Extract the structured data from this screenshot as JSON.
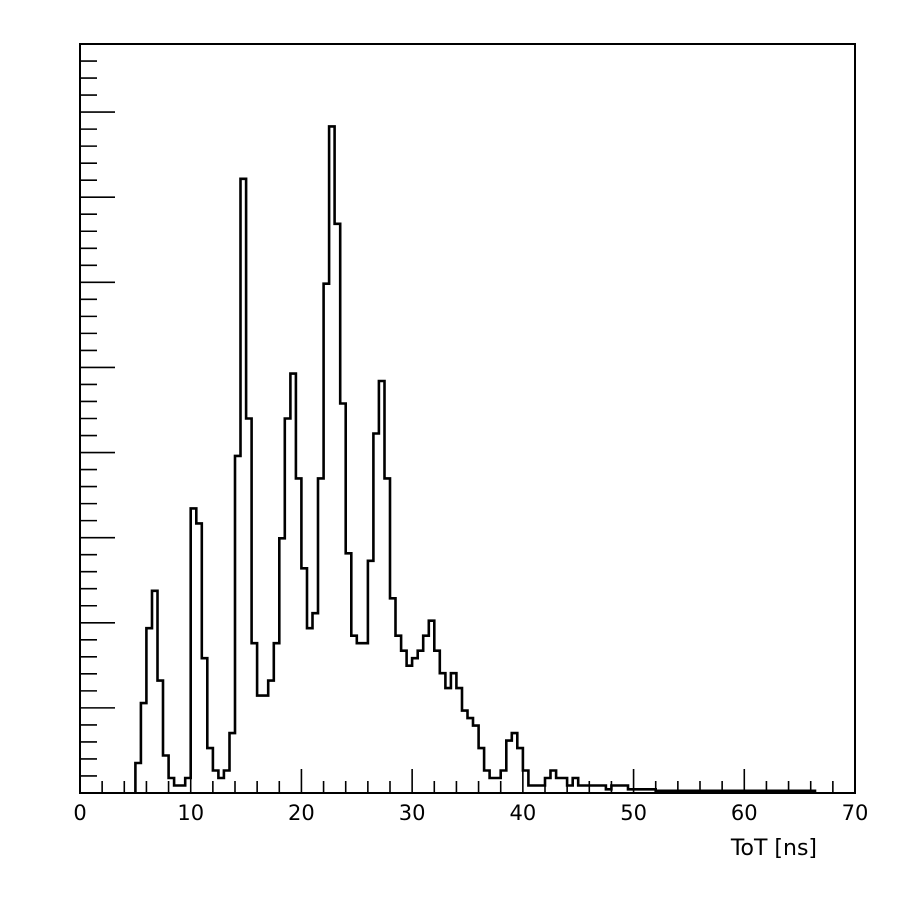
{
  "chart_data": {
    "type": "histogram",
    "title": "",
    "xlabel": "ToT [ns]",
    "ylabel": "",
    "xlim": [
      0,
      70
    ],
    "ylim": [
      0,
      100
    ],
    "grid": false,
    "x_ticks": [
      0,
      10,
      20,
      30,
      40,
      50,
      60,
      70
    ],
    "x_tick_labels": [
      "0",
      "10",
      "20",
      "30",
      "40",
      "50",
      "60",
      "70"
    ],
    "y_tick_labels_shown": false,
    "bin_width": 0.5,
    "series": [
      {
        "x": [
          5.25,
          5.75,
          6.25,
          6.75,
          7.25,
          7.75,
          8.25,
          8.75,
          9.25,
          9.75,
          10.25,
          10.75,
          11.25,
          11.75,
          12.25,
          12.75,
          13.25,
          13.75,
          14.25,
          14.75,
          15.25,
          15.75,
          16.25,
          16.75,
          17.25,
          17.75,
          18.25,
          18.75,
          19.25,
          19.75,
          20.25,
          20.75,
          21.25,
          21.75,
          22.25,
          22.75,
          23.25,
          23.75,
          24.25,
          24.75,
          25.25,
          25.75,
          26.25,
          26.75,
          27.25,
          27.75,
          28.25,
          28.75,
          29.25,
          29.75,
          30.25,
          30.75,
          31.25,
          31.75,
          32.25,
          32.75,
          33.25,
          33.75,
          34.25,
          34.75,
          35.25,
          35.75,
          36.25,
          36.75,
          37.25,
          37.75,
          38.25,
          38.75,
          39.25,
          39.75,
          40.25,
          40.75,
          41.25,
          41.75,
          42.25,
          42.75,
          43.25,
          43.75,
          44.25,
          44.75,
          45.25,
          45.75,
          46.25,
          46.75,
          47.25,
          47.75,
          48.25,
          48.75,
          49.25,
          49.75,
          50.25,
          50.75,
          51.25,
          51.75,
          52.25,
          52.75,
          53.25,
          53.75,
          54.25,
          54.75,
          55.25,
          55.75,
          56.25,
          56.75,
          57.25,
          57.75,
          58.25,
          58.75,
          59.25,
          59.75,
          60.25,
          60.75,
          61.25,
          61.75,
          62.25,
          62.75,
          63.25,
          63.75,
          64.25,
          64.75,
          65.25,
          65.75,
          66.25,
          66.75
        ],
        "y": [
          4,
          12,
          22,
          27,
          15,
          5,
          2,
          1,
          1,
          2,
          38,
          36,
          18,
          6,
          3,
          2,
          3,
          8,
          45,
          82,
          50,
          20,
          13,
          13,
          15,
          20,
          34,
          50,
          56,
          42,
          30,
          22,
          24,
          42,
          68,
          89,
          76,
          52,
          32,
          21,
          20,
          20,
          31,
          48,
          55,
          42,
          26,
          21,
          19,
          17,
          18,
          19,
          21,
          23,
          19,
          16,
          14,
          16,
          14,
          11,
          10,
          9,
          6,
          3,
          2,
          2,
          3,
          7,
          8,
          6,
          3,
          1,
          1,
          1,
          2,
          3,
          2,
          2,
          1,
          2,
          1,
          1,
          1,
          1,
          1,
          0.5,
          1,
          1,
          1,
          0.5,
          0.5,
          0.5,
          0.5,
          0.5,
          0.3,
          0.3,
          0.3,
          0.3,
          0.3,
          0.3,
          0.3,
          0.3,
          0.3,
          0.3,
          0.3,
          0.3,
          0.3,
          0.3,
          0.3,
          0.3,
          0.3,
          0.3,
          0.3,
          0.3,
          0.3,
          0.3,
          0.3,
          0.3,
          0.3,
          0.3,
          0.3,
          0.3,
          0.3
        ]
      }
    ]
  }
}
